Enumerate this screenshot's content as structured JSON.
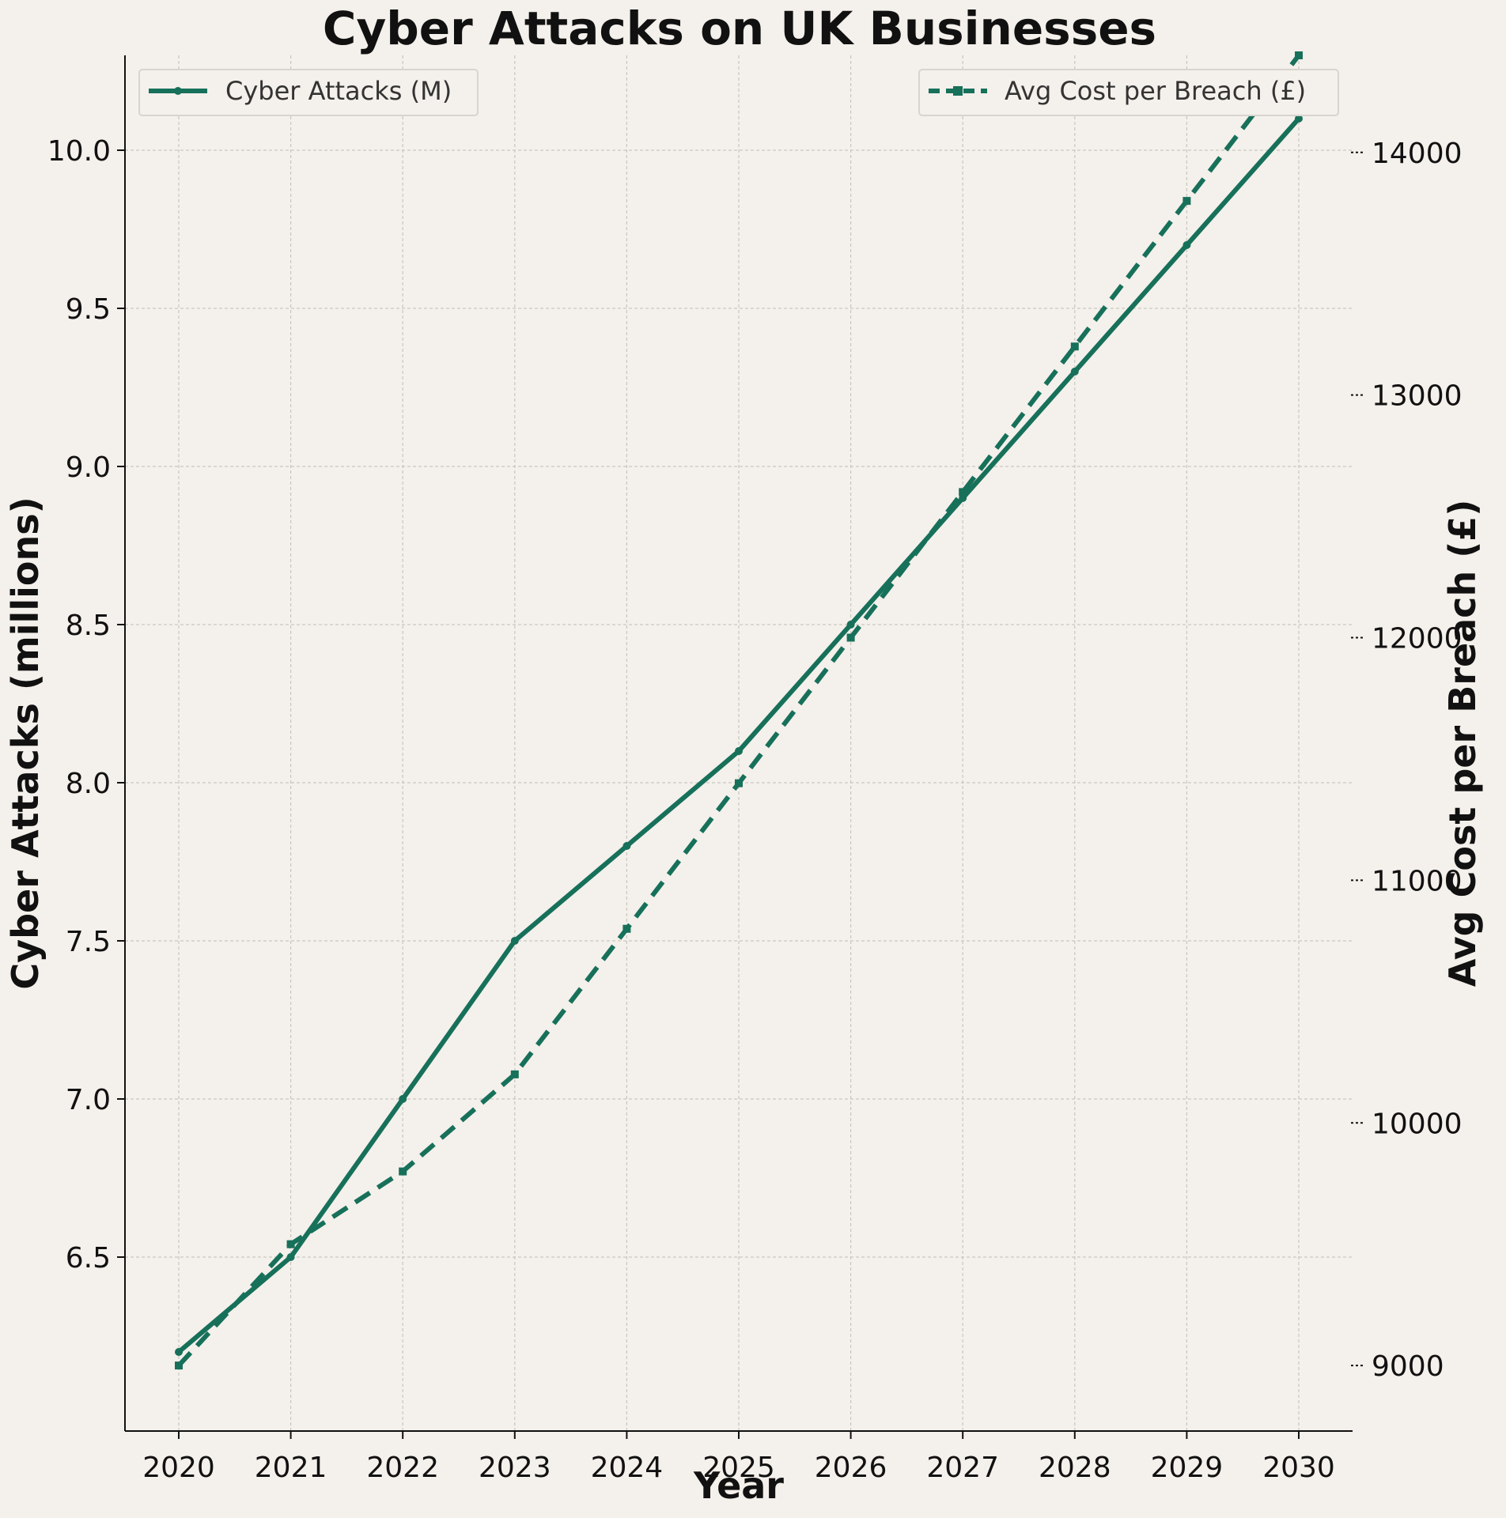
{
  "chart_data": {
    "type": "line",
    "title": "Cyber Attacks on UK Businesses",
    "xlabel": "Year",
    "ylabel_left": "Cyber Attacks (millions)",
    "ylabel_right": "Avg Cost per Breach (£)",
    "x": [
      2020,
      2021,
      2022,
      2023,
      2024,
      2025,
      2026,
      2027,
      2028,
      2029,
      2030
    ],
    "ylim_left": [
      5.95,
      10.3
    ],
    "ylim_right": [
      8730,
      14400
    ],
    "yticks_left": [
      6.5,
      7.0,
      7.5,
      8.0,
      8.5,
      9.0,
      9.5,
      10.0
    ],
    "yticks_left_labels": [
      "6.5",
      "7.0",
      "7.5",
      "8.0",
      "8.5",
      "9.0",
      "9.5",
      "10.0"
    ],
    "yticks_right": [
      9000,
      10000,
      11000,
      12000,
      13000,
      14000
    ],
    "yticks_right_labels": [
      "9000",
      "10000",
      "11000",
      "12000",
      "13000",
      "14000"
    ],
    "grid": true,
    "series": [
      {
        "name": "Cyber Attacks (M)",
        "axis": "left",
        "line_style": "solid",
        "marker": "circle",
        "color": "#17705a",
        "values": [
          6.2,
          6.5,
          7.0,
          7.5,
          7.8,
          8.1,
          8.5,
          8.9,
          9.3,
          9.7,
          10.1
        ]
      },
      {
        "name": "Avg Cost per Breach (£)",
        "axis": "right",
        "line_style": "dashed",
        "marker": "square",
        "color": "#17705a",
        "values": [
          9000,
          9500,
          9800,
          10200,
          10800,
          11400,
          12000,
          12600,
          13200,
          13800,
          14400
        ]
      }
    ],
    "legend_left_position": "top-left",
    "legend_right_position": "top-right"
  },
  "colors": {
    "background": "#f4f0eb",
    "line": "#17705a",
    "axis": "#111111"
  }
}
